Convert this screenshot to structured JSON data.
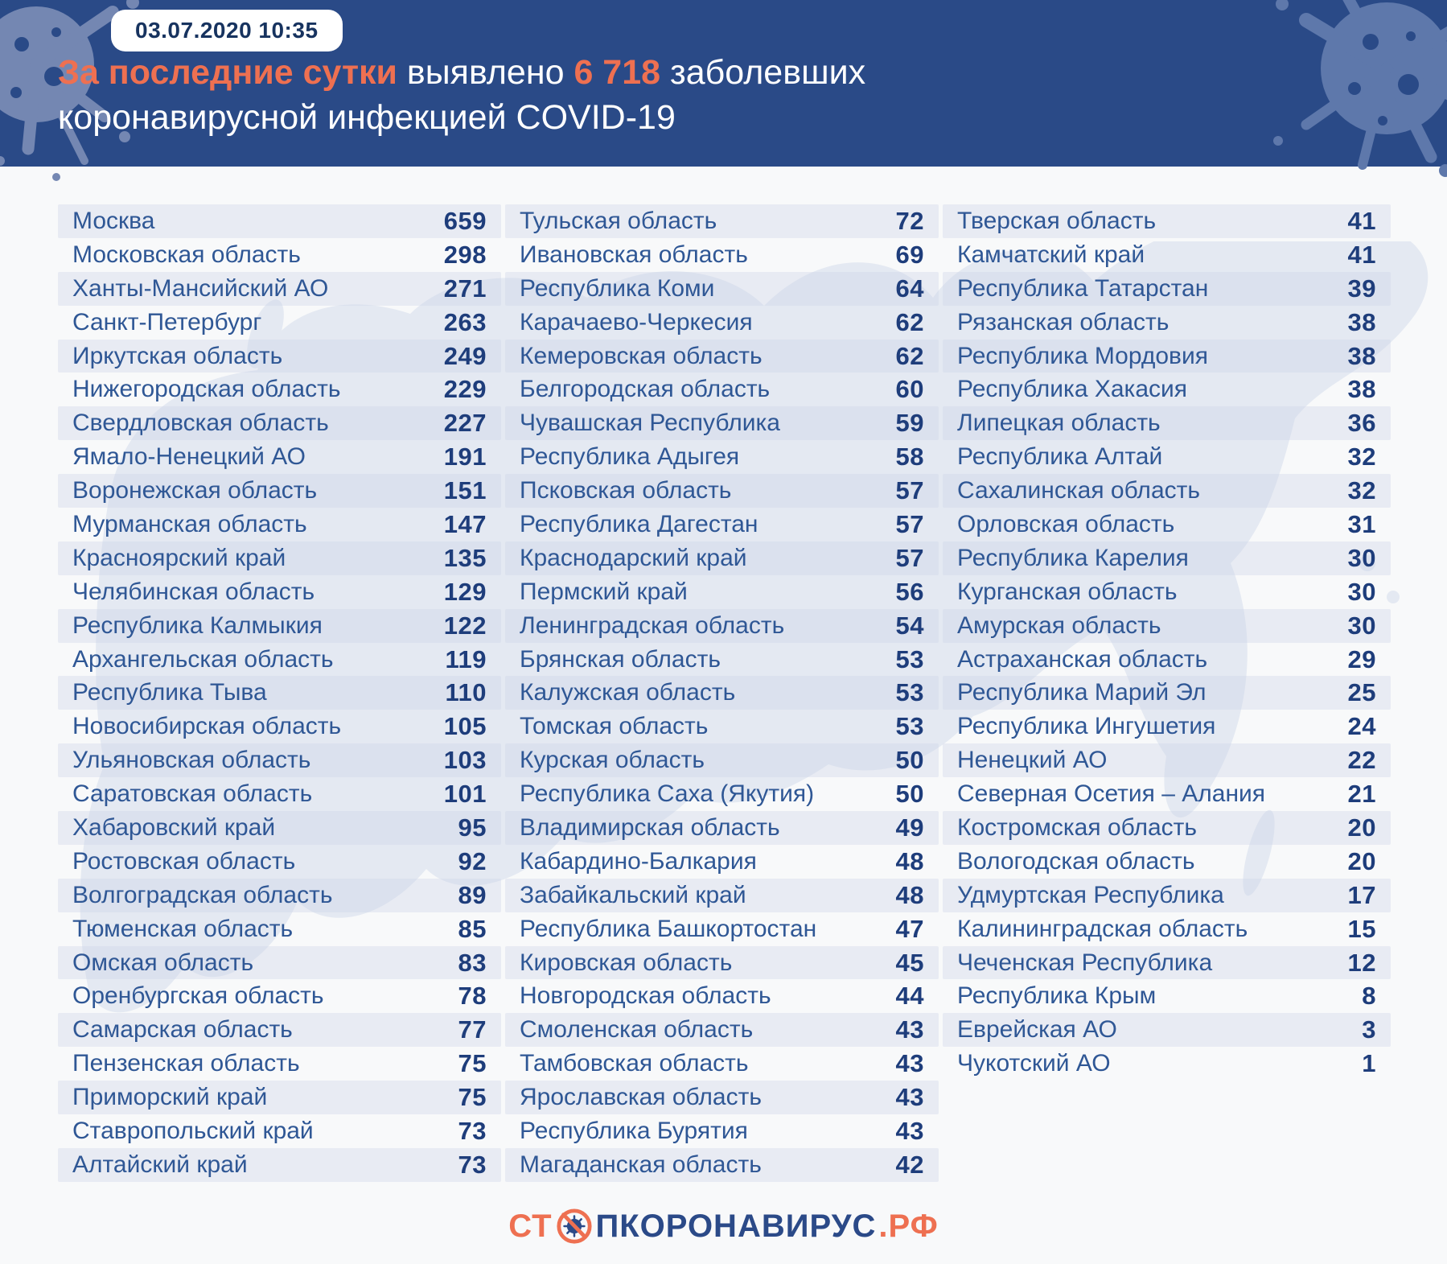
{
  "header": {
    "badge": "03.07.2020 10:35",
    "title_part1": "За последние сутки",
    "title_part2": " выявлено ",
    "title_count": "6 718",
    "title_part3": " заболевших",
    "title_line2": "коронавирусной инфекцией COVID-19"
  },
  "chart_data": {
    "type": "table",
    "title": "За последние сутки выявлено 6 718 заболевших коронавирусной инфекцией COVID-19",
    "date": "03.07.2020 10:35",
    "total_new_cases": "6 718",
    "unit": "new confirmed COVID-19 cases per region",
    "columns": [
      {
        "rows": [
          {
            "name": "Москва",
            "value": "659"
          },
          {
            "name": "Московская область",
            "value": "298"
          },
          {
            "name": "Ханты-Мансийский АО",
            "value": "271"
          },
          {
            "name": "Санкт-Петербург",
            "value": "263"
          },
          {
            "name": "Иркутская область",
            "value": "249"
          },
          {
            "name": "Нижегородская область",
            "value": "229"
          },
          {
            "name": "Свердловская область",
            "value": "227"
          },
          {
            "name": "Ямало-Ненецкий АО",
            "value": "191"
          },
          {
            "name": "Воронежская область",
            "value": "151"
          },
          {
            "name": "Мурманская область",
            "value": "147"
          },
          {
            "name": "Красноярский край",
            "value": "135"
          },
          {
            "name": "Челябинская область",
            "value": "129"
          },
          {
            "name": "Республика Калмыкия",
            "value": "122"
          },
          {
            "name": "Архангельская область",
            "value": "119"
          },
          {
            "name": "Республика Тыва",
            "value": "110"
          },
          {
            "name": "Новосибирская область",
            "value": "105"
          },
          {
            "name": "Ульяновская область",
            "value": "103"
          },
          {
            "name": "Саратовская область",
            "value": "101"
          },
          {
            "name": "Хабаровский край",
            "value": "95"
          },
          {
            "name": "Ростовская область",
            "value": "92"
          },
          {
            "name": "Волгоградская область",
            "value": "89"
          },
          {
            "name": "Тюменская область",
            "value": "85"
          },
          {
            "name": "Омская область",
            "value": "83"
          },
          {
            "name": "Оренбургская область",
            "value": "78"
          },
          {
            "name": "Самарская область",
            "value": "77"
          },
          {
            "name": "Пензенская область",
            "value": "75"
          },
          {
            "name": "Приморский край",
            "value": "75"
          },
          {
            "name": "Ставропольский край",
            "value": "73"
          },
          {
            "name": "Алтайский край",
            "value": "73"
          }
        ]
      },
      {
        "rows": [
          {
            "name": "Тульская область",
            "value": "72"
          },
          {
            "name": "Ивановская область",
            "value": "69"
          },
          {
            "name": "Республика Коми",
            "value": "64"
          },
          {
            "name": "Карачаево-Черкесия",
            "value": "62"
          },
          {
            "name": "Кемеровская область",
            "value": "62"
          },
          {
            "name": "Белгородская область",
            "value": "60"
          },
          {
            "name": "Чувашская Республика",
            "value": "59"
          },
          {
            "name": "Республика Адыгея",
            "value": "58"
          },
          {
            "name": "Псковская область",
            "value": "57"
          },
          {
            "name": "Республика Дагестан",
            "value": "57"
          },
          {
            "name": "Краснодарский край",
            "value": "57"
          },
          {
            "name": "Пермский край",
            "value": "56"
          },
          {
            "name": "Ленинградская область",
            "value": "54"
          },
          {
            "name": "Брянская область",
            "value": "53"
          },
          {
            "name": "Калужская область",
            "value": "53"
          },
          {
            "name": "Томская область",
            "value": "53"
          },
          {
            "name": "Курская область",
            "value": "50"
          },
          {
            "name": "Республика Саха (Якутия)",
            "value": "50"
          },
          {
            "name": "Владимирская область",
            "value": "49"
          },
          {
            "name": "Кабардино-Балкария",
            "value": "48"
          },
          {
            "name": "Забайкальский край",
            "value": "48"
          },
          {
            "name": "Республика Башкортостан",
            "value": "47"
          },
          {
            "name": "Кировская область",
            "value": "45"
          },
          {
            "name": "Новгородская область",
            "value": "44"
          },
          {
            "name": "Смоленская область",
            "value": "43"
          },
          {
            "name": "Тамбовская область",
            "value": "43"
          },
          {
            "name": "Ярославская область",
            "value": "43"
          },
          {
            "name": "Республика Бурятия",
            "value": "43"
          },
          {
            "name": "Магаданская область",
            "value": "42"
          }
        ]
      },
      {
        "rows": [
          {
            "name": "Тверская область",
            "value": "41"
          },
          {
            "name": "Камчатский край",
            "value": "41"
          },
          {
            "name": "Республика Татарстан",
            "value": "39"
          },
          {
            "name": "Рязанская область",
            "value": "38"
          },
          {
            "name": "Республика Мордовия",
            "value": "38"
          },
          {
            "name": "Республика Хакасия",
            "value": "38"
          },
          {
            "name": "Липецкая область",
            "value": "36"
          },
          {
            "name": "Республика Алтай",
            "value": "32"
          },
          {
            "name": "Сахалинская область",
            "value": "32"
          },
          {
            "name": "Орловская область",
            "value": "31"
          },
          {
            "name": "Республика Карелия",
            "value": "30"
          },
          {
            "name": "Курганская область",
            "value": "30"
          },
          {
            "name": "Амурская область",
            "value": "30"
          },
          {
            "name": "Астраханская область",
            "value": "29"
          },
          {
            "name": "Республика Марий Эл",
            "value": "25"
          },
          {
            "name": "Республика Ингушетия",
            "value": "24"
          },
          {
            "name": "Ненецкий АО",
            "value": "22"
          },
          {
            "name": "Северная Осетия – Алания",
            "value": "21"
          },
          {
            "name": "Костромская область",
            "value": "20"
          },
          {
            "name": "Вологодская область",
            "value": "20"
          },
          {
            "name": "Удмуртская Республика",
            "value": "17"
          },
          {
            "name": "Калининградская область",
            "value": "15"
          },
          {
            "name": "Чеченская Республика",
            "value": "12"
          },
          {
            "name": "Республика Крым",
            "value": "8"
          },
          {
            "name": "Еврейская АО",
            "value": "3"
          },
          {
            "name": "Чукотский АО",
            "value": "1"
          }
        ]
      }
    ]
  },
  "footer": {
    "logo_prefix": "СТ",
    "logo_icon": "no-virus-icon",
    "logo_main": "ПКОРОНАВИРУС",
    "logo_suffix": ".РФ"
  },
  "colors": {
    "header_bg": "#2a4a87",
    "accent_orange": "#ee7051",
    "region_name_blue": "#2f5795",
    "number_navy": "#1e3d7b",
    "row_stripe": "#e9edf4",
    "page_bg": "#f8f9fa",
    "map_silhouette": "#e4e9f2"
  }
}
